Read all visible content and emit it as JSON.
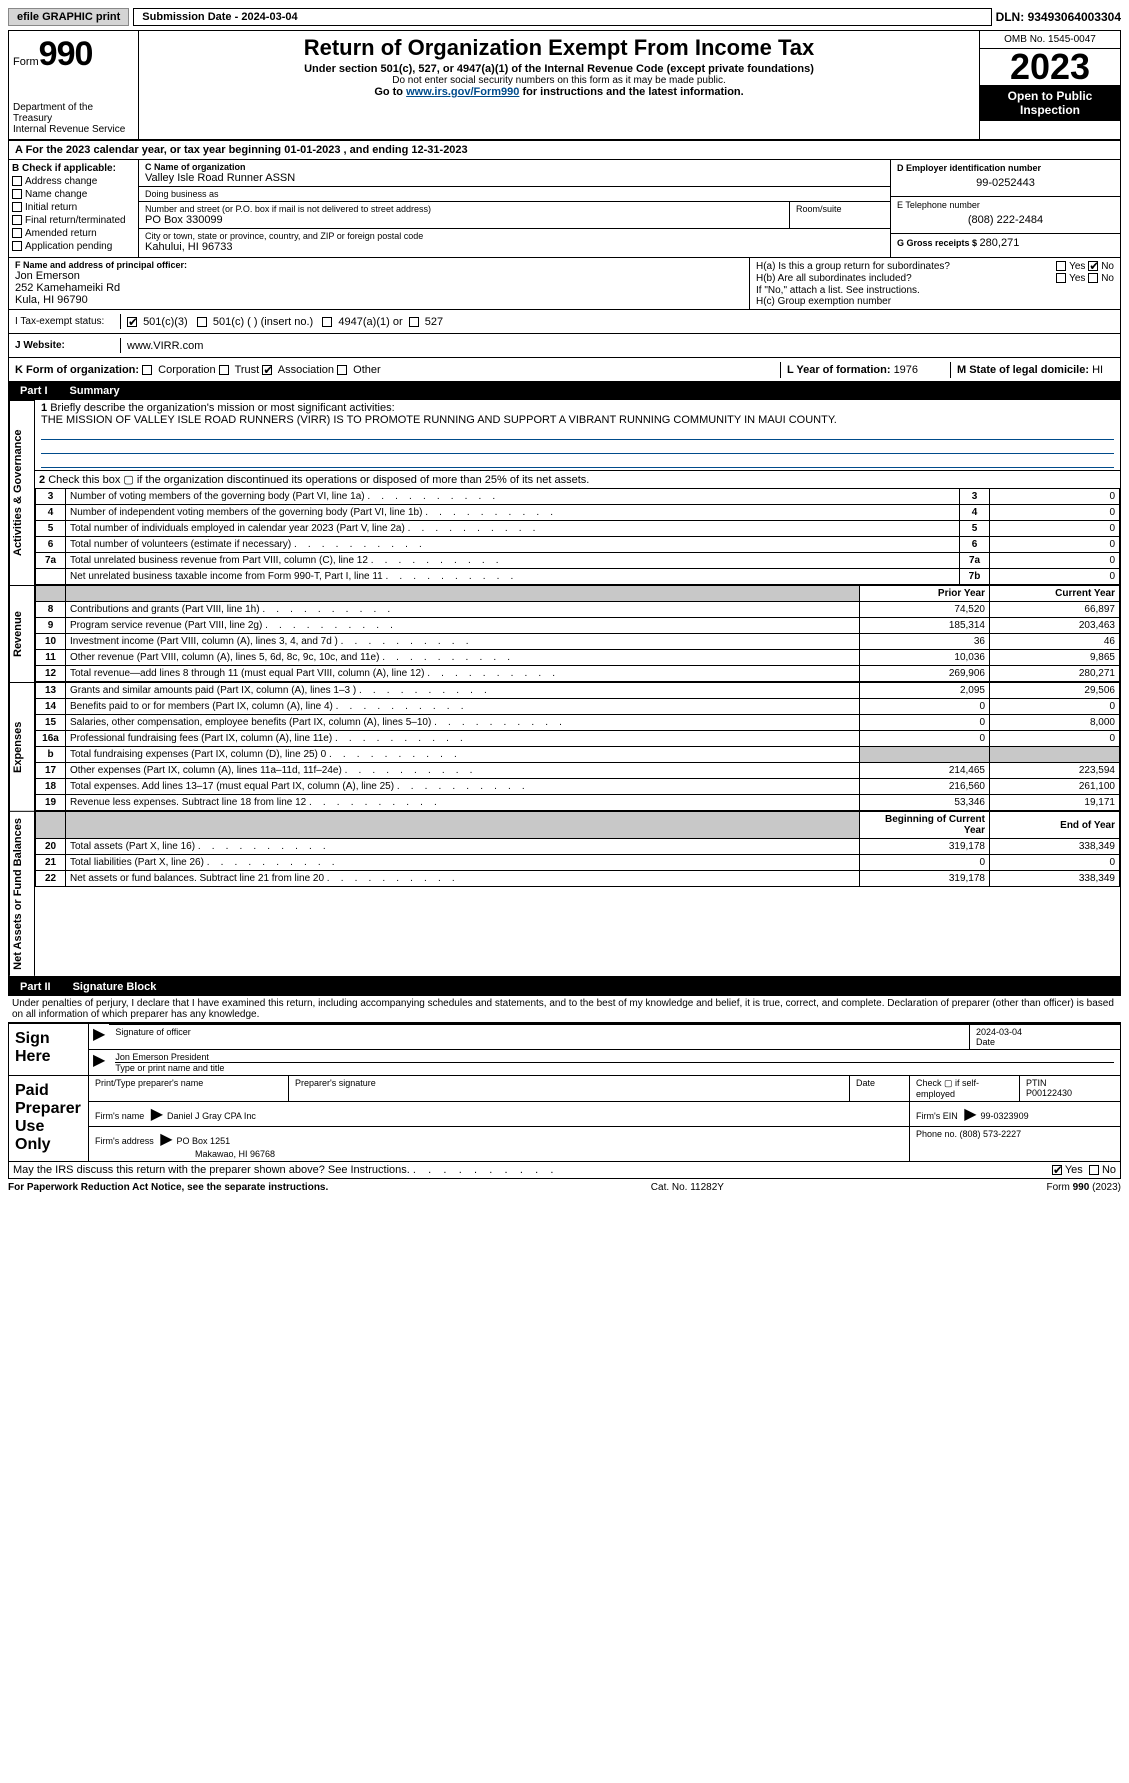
{
  "top": {
    "efile": "efile GRAPHIC print",
    "submission_label": "Submission Date - ",
    "submission_date": "2024-03-04",
    "dln_label": "DLN: ",
    "dln": "93493064003304"
  },
  "header": {
    "form_label": "Form",
    "form_num": "990",
    "title": "Return of Organization Exempt From Income Tax",
    "under": "Under section 501(c), 527, or 4947(a)(1) of the Internal Revenue Code (except private foundations)",
    "ssn": "Do not enter social security numbers on this form as it may be made public.",
    "goto_pre": "Go to ",
    "goto_link": "www.irs.gov/Form990",
    "goto_post": " for instructions and the latest information.",
    "dept": "Department of the Treasury",
    "irs": "Internal Revenue Service",
    "omb": "OMB No. 1545-0047",
    "year": "2023",
    "open": "Open to Public Inspection"
  },
  "calyear": {
    "prefix": "A For the 2023 calendar year, or tax year beginning ",
    "begin": "01-01-2023",
    "mid": " , and ending ",
    "end": "12-31-2023"
  },
  "checkB": {
    "label": "B Check if applicable:",
    "items": [
      "Address change",
      "Name change",
      "Initial return",
      "Final return/terminated",
      "Amended return",
      "Application pending"
    ]
  },
  "nameblock": {
    "c_lbl": "C Name of organization",
    "c_val": "Valley Isle Road Runner ASSN",
    "dba_lbl": "Doing business as",
    "dba_val": "",
    "street_lbl": "Number and street (or P.O. box if mail is not delivered to street address)",
    "street_val": "PO Box 330099",
    "room_lbl": "Room/suite",
    "city_lbl": "City or town, state or province, country, and ZIP or foreign postal code",
    "city_val": "Kahului, HI  96733"
  },
  "rightcol": {
    "d_lbl": "D Employer identification number",
    "d_val": "99-0252443",
    "e_lbl": "E Telephone number",
    "e_val": "(808) 222-2484",
    "g_lbl": "G Gross receipts $ ",
    "g_val": "280,271"
  },
  "officer": {
    "f_lbl": "F Name and address of principal officer:",
    "name": "Jon Emerson",
    "street": "252 Kamehameiki Rd",
    "city": "Kula, HI  96790",
    "ha": "H(a)  Is this a group return for subordinates?",
    "hb": "H(b)  Are all subordinates included?",
    "hb_note": "If \"No,\" attach a list. See instructions.",
    "hc": "H(c)  Group exemption number",
    "yes": "Yes",
    "no": "No"
  },
  "taxex": {
    "lbl": "I Tax-exempt status:",
    "opt1": "501(c)(3)",
    "opt2": "501(c) (  ) (insert no.)",
    "opt3": "4947(a)(1) or",
    "opt4": "527"
  },
  "website": {
    "lbl": "J Website:",
    "val": "www.VIRR.com"
  },
  "formorg": {
    "lbl": "K Form of organization:",
    "opts": [
      "Corporation",
      "Trust",
      "Association",
      "Other"
    ],
    "checked_index": 2,
    "l_lbl": "L Year of formation: ",
    "l_val": "1976",
    "m_lbl": "M State of legal domicile: ",
    "m_val": "HI"
  },
  "part1": {
    "num": "Part I",
    "title": "Summary",
    "side_ag": "Activities & Governance",
    "side_rev": "Revenue",
    "side_exp": "Expenses",
    "side_na": "Net Assets or Fund Balances",
    "q1": "Briefly describe the organization's mission or most significant activities:",
    "mission": "THE MISSION OF VALLEY ISLE ROAD RUNNERS (VIRR) IS TO PROMOTE RUNNING AND SUPPORT A VIBRANT RUNNING COMMUNITY IN MAUI COUNTY.",
    "q2": "Check this box ▢ if the organization discontinued its operations or disposed of more than 25% of its net assets.",
    "lines_ag": [
      {
        "n": "3",
        "t": "Number of voting members of the governing body (Part VI, line 1a)",
        "box": "3",
        "v": "0"
      },
      {
        "n": "4",
        "t": "Number of independent voting members of the governing body (Part VI, line 1b)",
        "box": "4",
        "v": "0"
      },
      {
        "n": "5",
        "t": "Total number of individuals employed in calendar year 2023 (Part V, line 2a)",
        "box": "5",
        "v": "0"
      },
      {
        "n": "6",
        "t": "Total number of volunteers (estimate if necessary)",
        "box": "6",
        "v": "0"
      },
      {
        "n": "7a",
        "t": "Total unrelated business revenue from Part VIII, column (C), line 12",
        "box": "7a",
        "v": "0"
      },
      {
        "n": "",
        "t": "Net unrelated business taxable income from Form 990-T, Part I, line 11",
        "box": "7b",
        "v": "0"
      }
    ],
    "hdr_prior": "Prior Year",
    "hdr_current": "Current Year",
    "lines_rev": [
      {
        "n": "8",
        "t": "Contributions and grants (Part VIII, line 1h)",
        "p": "74,520",
        "c": "66,897"
      },
      {
        "n": "9",
        "t": "Program service revenue (Part VIII, line 2g)",
        "p": "185,314",
        "c": "203,463"
      },
      {
        "n": "10",
        "t": "Investment income (Part VIII, column (A), lines 3, 4, and 7d )",
        "p": "36",
        "c": "46"
      },
      {
        "n": "11",
        "t": "Other revenue (Part VIII, column (A), lines 5, 6d, 8c, 9c, 10c, and 11e)",
        "p": "10,036",
        "c": "9,865"
      },
      {
        "n": "12",
        "t": "Total revenue—add lines 8 through 11 (must equal Part VIII, column (A), line 12)",
        "p": "269,906",
        "c": "280,271"
      }
    ],
    "lines_exp": [
      {
        "n": "13",
        "t": "Grants and similar amounts paid (Part IX, column (A), lines 1–3 )",
        "p": "2,095",
        "c": "29,506"
      },
      {
        "n": "14",
        "t": "Benefits paid to or for members (Part IX, column (A), line 4)",
        "p": "0",
        "c": "0"
      },
      {
        "n": "15",
        "t": "Salaries, other compensation, employee benefits (Part IX, column (A), lines 5–10)",
        "p": "0",
        "c": "8,000"
      },
      {
        "n": "16a",
        "t": "Professional fundraising fees (Part IX, column (A), line 11e)",
        "p": "0",
        "c": "0"
      },
      {
        "n": "b",
        "t": "Total fundraising expenses (Part IX, column (D), line 25) 0",
        "p": "__SHADE__",
        "c": "__SHADE__"
      },
      {
        "n": "17",
        "t": "Other expenses (Part IX, column (A), lines 11a–11d, 11f–24e)",
        "p": "214,465",
        "c": "223,594"
      },
      {
        "n": "18",
        "t": "Total expenses. Add lines 13–17 (must equal Part IX, column (A), line 25)",
        "p": "216,560",
        "c": "261,100"
      },
      {
        "n": "19",
        "t": "Revenue less expenses. Subtract line 18 from line 12",
        "p": "53,346",
        "c": "19,171"
      }
    ],
    "hdr_beg": "Beginning of Current Year",
    "hdr_end": "End of Year",
    "lines_na": [
      {
        "n": "20",
        "t": "Total assets (Part X, line 16)",
        "p": "319,178",
        "c": "338,349"
      },
      {
        "n": "21",
        "t": "Total liabilities (Part X, line 26)",
        "p": "0",
        "c": "0"
      },
      {
        "n": "22",
        "t": "Net assets or fund balances. Subtract line 21 from line 20",
        "p": "319,178",
        "c": "338,349"
      }
    ]
  },
  "part2": {
    "num": "Part II",
    "title": "Signature Block",
    "perjury": "Under penalties of perjury, I declare that I have examined this return, including accompanying schedules and statements, and to the best of my knowledge and belief, it is true, correct, and complete. Declaration of preparer (other than officer) is based on all information of which preparer has any knowledge.",
    "sign_here": "Sign Here",
    "sig_officer": "Signature of officer",
    "officer_name": "Jon Emerson  President",
    "type_name": "Type or print name and title",
    "date_lbl": "Date",
    "date_val": "2024-03-04",
    "paid": "Paid Preparer Use Only",
    "prep_name_lbl": "Print/Type preparer's name",
    "prep_sig_lbl": "Preparer's signature",
    "check_if": "Check ▢ if self-employed",
    "ptin_lbl": "PTIN",
    "ptin_val": "P00122430",
    "firm_name_lbl": "Firm's name   ",
    "firm_name": "Daniel J Gray CPA Inc",
    "firm_ein_lbl": "Firm's EIN ",
    "firm_ein": "99-0323909",
    "firm_addr_lbl": "Firm's address ",
    "firm_addr1": "PO Box 1251",
    "firm_addr2": "Makawao, HI  96768",
    "phone_lbl": "Phone no. ",
    "phone": "(808) 573-2227",
    "may_irs": "May the IRS discuss this return with the preparer shown above? See Instructions.",
    "yes": "Yes",
    "no": "No"
  },
  "footer": {
    "pra": "For Paperwork Reduction Act Notice, see the separate instructions.",
    "cat": "Cat. No. 11282Y",
    "form": "Form 990 (2023)"
  },
  "colors": {
    "link": "#004b8b",
    "shade": "#c8c8c8"
  }
}
